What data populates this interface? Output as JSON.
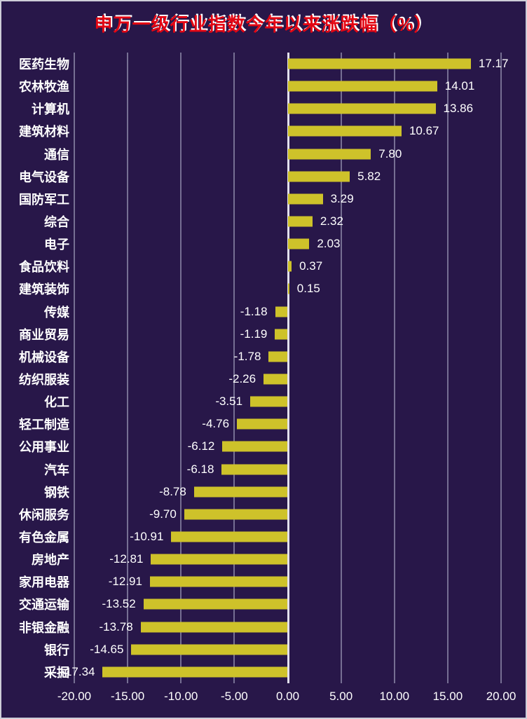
{
  "title": "申万一级行业指数今年以来涨跌幅（%）",
  "chart_data": {
    "type": "bar",
    "orientation": "horizontal",
    "title": "申万一级行业指数今年以来涨跌幅（%）",
    "xlabel": "",
    "ylabel": "",
    "xlim": [
      -20,
      20
    ],
    "grid": true,
    "legend": false,
    "categories": [
      "医药生物",
      "农林牧渔",
      "计算机",
      "建筑材料",
      "通信",
      "电气设备",
      "国防军工",
      "综合",
      "电子",
      "食品饮料",
      "建筑装饰",
      "传媒",
      "商业贸易",
      "机械设备",
      "纺织服装",
      "化工",
      "轻工制造",
      "公用事业",
      "汽车",
      "钢铁",
      "休闲服务",
      "有色金属",
      "房地产",
      "家用电器",
      "交通运输",
      "非银金融",
      "银行",
      "采掘"
    ],
    "values": [
      17.17,
      14.01,
      13.86,
      10.67,
      7.8,
      5.82,
      3.29,
      2.32,
      2.03,
      0.37,
      0.15,
      -1.18,
      -1.19,
      -1.78,
      -2.26,
      -3.51,
      -4.76,
      -6.12,
      -6.18,
      -8.78,
      -9.7,
      -10.91,
      -12.81,
      -12.91,
      -13.52,
      -13.78,
      -14.65,
      -17.34
    ],
    "value_labels": [
      "17.17",
      "14.01",
      "13.86",
      "10.67",
      "7.80",
      "5.82",
      "3.29",
      "2.32",
      "2.03",
      "0.37",
      "0.15",
      "-1.18",
      "-1.19",
      "-1.78",
      "-2.26",
      "-3.51",
      "-4.76",
      "-6.12",
      "-6.18",
      "-8.78",
      "-9.70",
      "-10.91",
      "-12.81",
      "-12.91",
      "-13.52",
      "-13.78",
      "-14.65",
      "-17.34"
    ],
    "x_ticks": [
      "-20.00",
      "-15.00",
      "-10.00",
      "-5.00",
      "0.00",
      "5.00",
      "10.00",
      "15.00",
      "20.00"
    ],
    "colors": {
      "background": "#281749",
      "bar": "#cec22a",
      "gridline": "#766f93",
      "zero_line": "#e2e0ec",
      "title_text": "#e30613",
      "title_highlight": "#ffffff",
      "label_text": "#ffffff",
      "frame": "#cdcdd8"
    }
  }
}
